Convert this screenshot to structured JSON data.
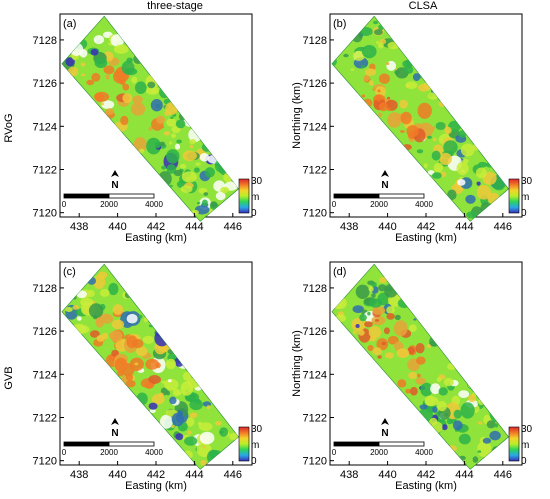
{
  "figure": {
    "column_titles": [
      "three-stage",
      "CLSA"
    ],
    "row_labels": [
      "RVoG",
      "GVB"
    ]
  },
  "panels": [
    {
      "id": "(a)",
      "row": 0,
      "col": 0,
      "show_ylabel": false
    },
    {
      "id": "(b)",
      "row": 0,
      "col": 1,
      "show_ylabel": true
    },
    {
      "id": "(c)",
      "row": 1,
      "col": 0,
      "show_ylabel": false
    },
    {
      "id": "(d)",
      "row": 1,
      "col": 1,
      "show_ylabel": true
    }
  ],
  "axes": {
    "xlabel": "Easting (km)",
    "ylabel": "Northing (km)",
    "xticks": [
      438,
      440,
      442,
      444,
      446
    ],
    "yticks": [
      7120,
      7122,
      7124,
      7126,
      7128
    ],
    "xlim": [
      437,
      447
    ],
    "ylim": [
      7119.8,
      7129.2
    ]
  },
  "scalebar": {
    "ticks": [
      "0",
      "2000",
      "4000"
    ]
  },
  "north_arrow": {
    "label": "N"
  },
  "colorbar": {
    "max_label": "30",
    "unit": "m",
    "min_label": "0",
    "range": [
      0,
      30
    ],
    "colors": [
      "#3a2fb8",
      "#2aa7e8",
      "#2bd35a",
      "#b8ef2a",
      "#f6d32a",
      "#f07a26",
      "#e0282b"
    ]
  },
  "map_palette": {
    "base": "#8fe33b",
    "patches": [
      "#f07a26",
      "#e8a33a",
      "#f0c93a",
      "#e05a2a",
      "#3a9a4a",
      "#2f6fb0",
      "#3a2fb8",
      "#2db34a",
      "#c8ec3a",
      "#ffffff"
    ]
  }
}
